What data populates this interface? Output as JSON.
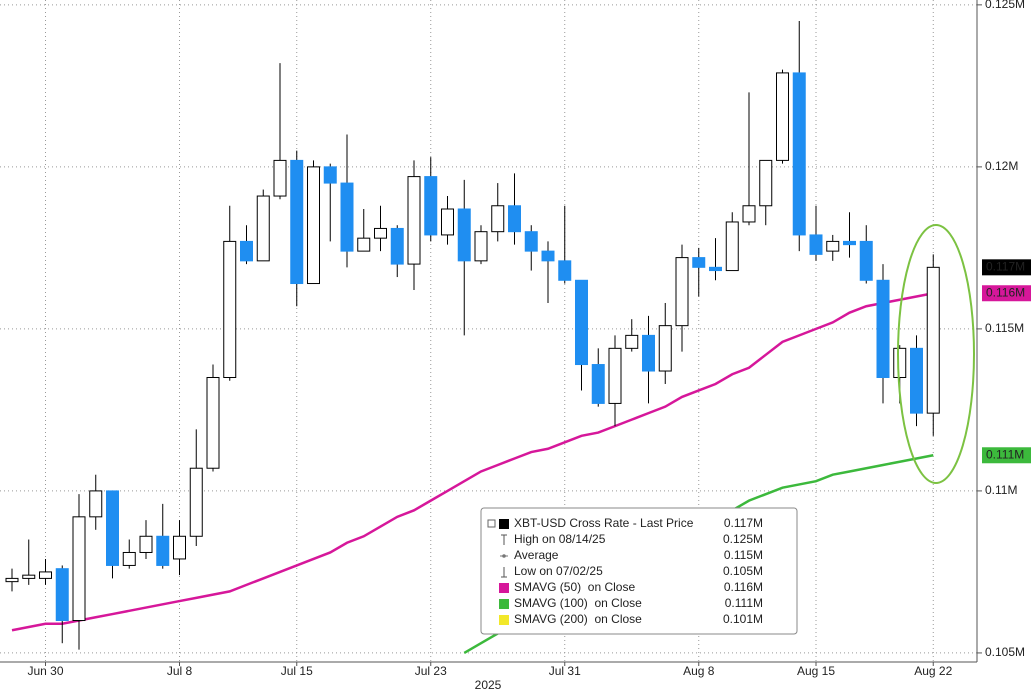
{
  "chart_data": {
    "type": "candlestick",
    "x_label": "2025",
    "categories": [
      null,
      null,
      "Jun 30",
      null,
      null,
      null,
      null,
      null,
      null,
      null,
      "Jul 8",
      null,
      null,
      null,
      null,
      null,
      null,
      "Jul 15",
      null,
      null,
      null,
      null,
      null,
      null,
      null,
      "Jul 23",
      null,
      null,
      null,
      null,
      null,
      null,
      null,
      "Jul 31",
      null,
      null,
      null,
      null,
      null,
      null,
      null,
      "Aug 8",
      null,
      null,
      null,
      null,
      null,
      null,
      "Aug 15",
      null,
      null,
      null,
      null,
      null,
      null,
      "Aug 22"
    ],
    "ylim": [
      0.10472,
      0.12515
    ],
    "yticks": [
      {
        "value": 0.105,
        "label": "0.105M"
      },
      {
        "value": 0.11,
        "label": "0.11M"
      },
      {
        "value": 0.115,
        "label": "0.115M"
      },
      {
        "value": 0.12,
        "label": "0.12M"
      },
      {
        "value": 0.125,
        "label": "0.125M"
      }
    ],
    "grid": true,
    "ohlc": {
      "name": "XBT-USD Cross Rate - Last Price",
      "color": "#000000",
      "up_color": "#ffffff",
      "down_color": "#1f8ef1",
      "last_label": "0.117M",
      "open": [
        0.1072,
        0.1073,
        0.1073,
        0.1076,
        0.106,
        0.1092,
        0.11,
        0.1077,
        0.1081,
        0.1086,
        0.1079,
        0.1086,
        0.1107,
        0.1135,
        0.1177,
        0.1171,
        0.1191,
        0.1202,
        0.1164,
        0.12,
        0.1195,
        0.1174,
        0.1178,
        0.1181,
        0.117,
        0.1197,
        0.1179,
        0.1187,
        0.1171,
        0.118,
        0.1188,
        0.118,
        0.1174,
        0.1171,
        0.1165,
        0.1139,
        0.1127,
        0.1144,
        0.1148,
        0.1137,
        0.1151,
        0.1172,
        0.1169,
        0.1168,
        0.1183,
        0.1188,
        0.1202,
        0.1229,
        0.1179,
        0.1174,
        0.1177,
        0.1177,
        0.1165,
        0.1135,
        0.1144,
        0.1124
      ],
      "high": [
        0.1076,
        0.1085,
        0.1079,
        0.1077,
        0.1099,
        0.1105,
        0.11,
        0.1085,
        0.1091,
        0.1096,
        0.1091,
        0.1119,
        0.1139,
        0.1188,
        0.1182,
        0.1193,
        0.1232,
        0.1205,
        0.1202,
        0.1201,
        0.121,
        0.1187,
        0.1188,
        0.1182,
        0.1202,
        0.1203,
        0.1191,
        0.1196,
        0.1182,
        0.1195,
        0.1198,
        0.1182,
        0.1177,
        0.1188,
        0.1165,
        0.1144,
        0.1148,
        0.1153,
        0.1154,
        0.1158,
        0.1176,
        0.1175,
        0.1178,
        0.1186,
        0.1223,
        0.1202,
        0.123,
        0.1245,
        0.1188,
        0.1179,
        0.1186,
        0.1182,
        0.117,
        0.1145,
        0.1148,
        0.1173
      ],
      "low": [
        0.1069,
        0.1071,
        0.1071,
        0.1053,
        0.1051,
        0.1088,
        0.1073,
        0.1076,
        0.1079,
        0.1076,
        0.1074,
        0.1083,
        0.1106,
        0.1134,
        0.117,
        0.1171,
        0.119,
        0.1157,
        0.1164,
        0.1177,
        0.1169,
        0.1174,
        0.1174,
        0.1166,
        0.1162,
        0.1177,
        0.1176,
        0.1148,
        0.117,
        0.1177,
        0.1176,
        0.1168,
        0.1158,
        0.1164,
        0.1131,
        0.1126,
        0.112,
        0.1143,
        0.1127,
        0.1133,
        0.1143,
        0.116,
        0.1165,
        0.1168,
        0.1182,
        0.1182,
        0.1201,
        0.1174,
        0.1171,
        0.1171,
        0.1172,
        0.1164,
        0.1127,
        0.1127,
        0.112,
        0.1117
      ],
      "close": [
        0.1073,
        0.1074,
        0.1075,
        0.106,
        0.1092,
        0.11,
        0.1077,
        0.1081,
        0.1086,
        0.1077,
        0.1086,
        0.1107,
        0.1135,
        0.1177,
        0.1171,
        0.1191,
        0.1202,
        0.1164,
        0.12,
        0.1195,
        0.1174,
        0.1178,
        0.1181,
        0.117,
        0.1197,
        0.1179,
        0.1187,
        0.1171,
        0.118,
        0.1188,
        0.118,
        0.1174,
        0.1171,
        0.1165,
        0.1139,
        0.1127,
        0.1144,
        0.1148,
        0.1137,
        0.1151,
        0.1172,
        0.1169,
        0.1168,
        0.1183,
        0.1188,
        0.1202,
        0.1229,
        0.1179,
        0.1173,
        0.1177,
        0.1176,
        0.1165,
        0.1135,
        0.1144,
        0.1124,
        0.1169
      ]
    },
    "stats": [
      {
        "name": "High on 08/14/25",
        "label": "0.125M"
      },
      {
        "name": "Average",
        "label": "0.115M"
      },
      {
        "name": "Low on 07/02/25",
        "label": "0.105M"
      }
    ],
    "series": [
      {
        "name": "SMAVG (50)  on Close",
        "color": "#d6179a",
        "last_label": "0.116M",
        "values": [
          0.1057,
          0.1058,
          0.1059,
          0.1059,
          0.106,
          0.1061,
          0.1062,
          0.1063,
          0.1064,
          0.1065,
          0.1066,
          0.1067,
          0.1068,
          0.1069,
          0.1071,
          0.1073,
          0.1075,
          0.1077,
          0.1079,
          0.1081,
          0.1084,
          0.1086,
          0.1089,
          0.1092,
          0.1094,
          0.1097,
          0.11,
          0.1103,
          0.1106,
          0.1108,
          0.111,
          0.1112,
          0.1113,
          0.1115,
          0.1117,
          0.1118,
          0.112,
          0.1122,
          0.1124,
          0.1126,
          0.1129,
          0.1131,
          0.1133,
          0.1136,
          0.1138,
          0.1142,
          0.1146,
          0.1148,
          0.115,
          0.1152,
          0.1155,
          0.1157,
          0.1158,
          0.1159,
          0.116,
          0.1161
        ]
      },
      {
        "name": "SMAVG (100)  on Close",
        "color": "#3cb93c",
        "last_label": "0.111M",
        "values": [
          null,
          null,
          null,
          null,
          null,
          null,
          null,
          null,
          null,
          null,
          null,
          null,
          null,
          null,
          null,
          null,
          null,
          null,
          null,
          null,
          null,
          null,
          null,
          null,
          null,
          null,
          null,
          0.105,
          0.1053,
          0.1056,
          0.1058,
          0.1061,
          0.1064,
          0.1067,
          0.1069,
          0.1072,
          0.1075,
          0.1077,
          0.108,
          0.1083,
          0.1086,
          0.1088,
          0.1091,
          0.1094,
          0.1097,
          0.1099,
          0.1101,
          0.1102,
          0.1103,
          0.1105,
          0.1106,
          0.1107,
          0.1108,
          0.1109,
          0.111,
          0.1111
        ]
      }
    ],
    "off_chart": {
      "name": "SMAVG (200)  on Close",
      "color": "#f2e82a",
      "label": "0.101M"
    }
  }
}
